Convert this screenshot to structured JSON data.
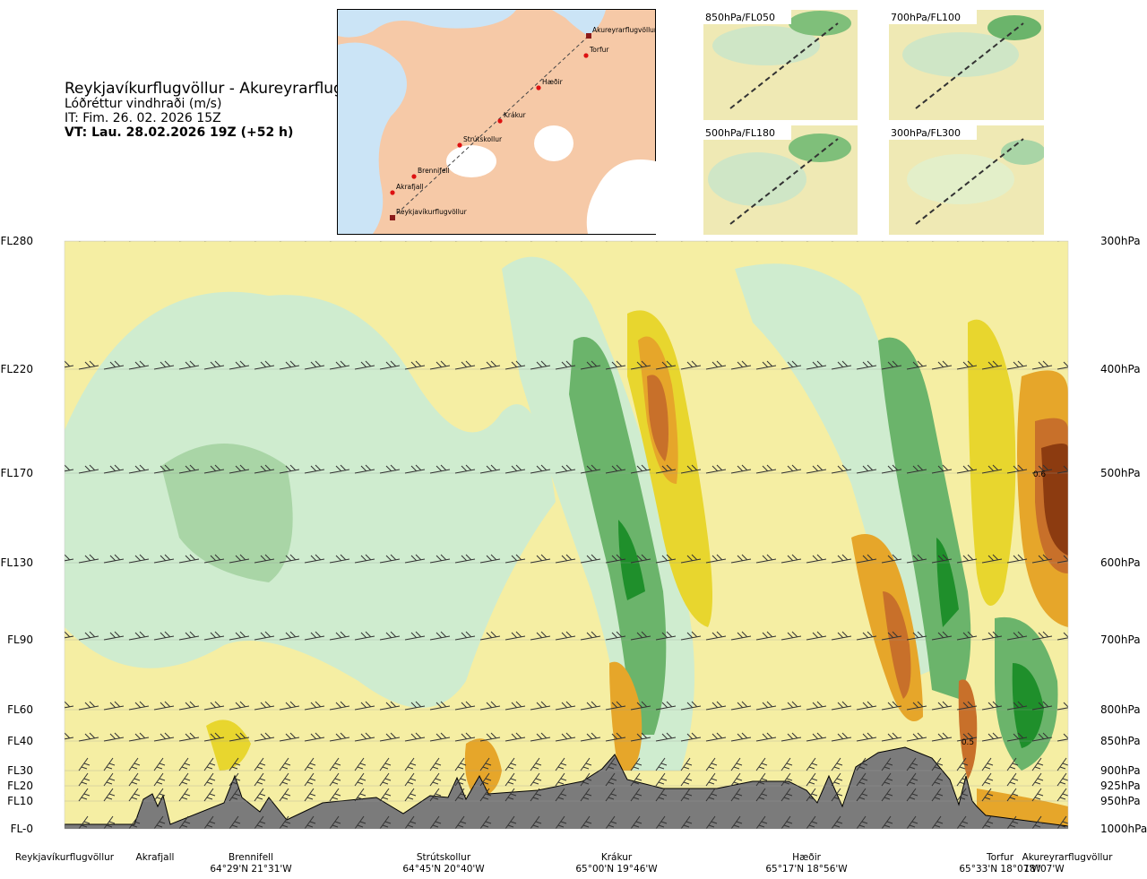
{
  "header": {
    "route": "Reykjavíkurflugvöllur - Akureyrarflugvöllur",
    "variable": "Lóðréttur vindhraði (m/s)",
    "issue_time": "IT: Fim. 26. 02. 2026 15Z",
    "valid_time": "VT: Lau. 28.02.2026 19Z (+52 h)"
  },
  "map": {
    "places": [
      {
        "name": "Akureyrarflugvöllur"
      },
      {
        "name": "Torfur"
      },
      {
        "name": "Hæðir"
      },
      {
        "name": "Krákur"
      },
      {
        "name": "Strútskollur"
      },
      {
        "name": "Brennifell"
      },
      {
        "name": "Akrafjall"
      },
      {
        "name": "Reykjavíkurflugvöllur"
      }
    ]
  },
  "thumbnails": [
    {
      "label": "850hPa/FL050"
    },
    {
      "label": "700hPa/FL100"
    },
    {
      "label": "500hPa/FL180"
    },
    {
      "label": "300hPa/FL300"
    }
  ],
  "chart_data": {
    "type": "heatmap",
    "title": "Lóðréttur vindhraði (m/s)",
    "left_axis_labels": [
      "FL280",
      "FL220",
      "FL170",
      "FL130",
      "FL90",
      "FL60",
      "FL40",
      "FL30",
      "FL20",
      "FL10",
      "FL-0"
    ],
    "right_axis_labels": [
      "300hPa",
      "400hPa",
      "500hPa",
      "600hPa",
      "700hPa",
      "800hPa",
      "850hPa",
      "900hPa",
      "925hPa",
      "950hPa",
      "1000hPa"
    ],
    "levels_hpa": [
      300,
      400,
      500,
      600,
      700,
      800,
      850,
      900,
      925,
      950,
      1000
    ],
    "locations": [
      {
        "name": "Reykjavíkurflugvöllur",
        "coord": ""
      },
      {
        "name": "Akrafjall",
        "coord": ""
      },
      {
        "name": "Brennifell",
        "coord": "64°29'N 21°31'W"
      },
      {
        "name": "Strútskollur",
        "coord": "64°45'N 20°40'W"
      },
      {
        "name": "Krákur",
        "coord": "65°00'N 19°46'W"
      },
      {
        "name": "Hæðir",
        "coord": "65°17'N 18°56'W"
      },
      {
        "name": "Torfur",
        "coord": "65°33'N 18°07'W"
      },
      {
        "name": "Akureyrarflugvöllur",
        "coord": "18°07'W"
      }
    ],
    "contour_annotations": [
      {
        "text": "0.6",
        "level_hpa": 500,
        "near": "Akureyrarflugvöllur"
      },
      {
        "text": "0.5",
        "level_hpa": 850,
        "near": "Torfur"
      }
    ],
    "colors": {
      "strong_sink": "#8c3b10",
      "sink": "#c8702a",
      "moderate_sink": "#e6a62a",
      "weak_sink": "#e8d62e",
      "faint_sink": "#f5eea3",
      "near_zero": "#fbfbe0",
      "faint_lift": "#cfeccf",
      "weak_lift": "#a9d5a6",
      "moderate_lift": "#6bb46b",
      "strong_lift": "#1f8f2b",
      "terrain": "#7b7b7b",
      "land": "#f6c9a7",
      "sea": "#cbe4f6"
    }
  }
}
